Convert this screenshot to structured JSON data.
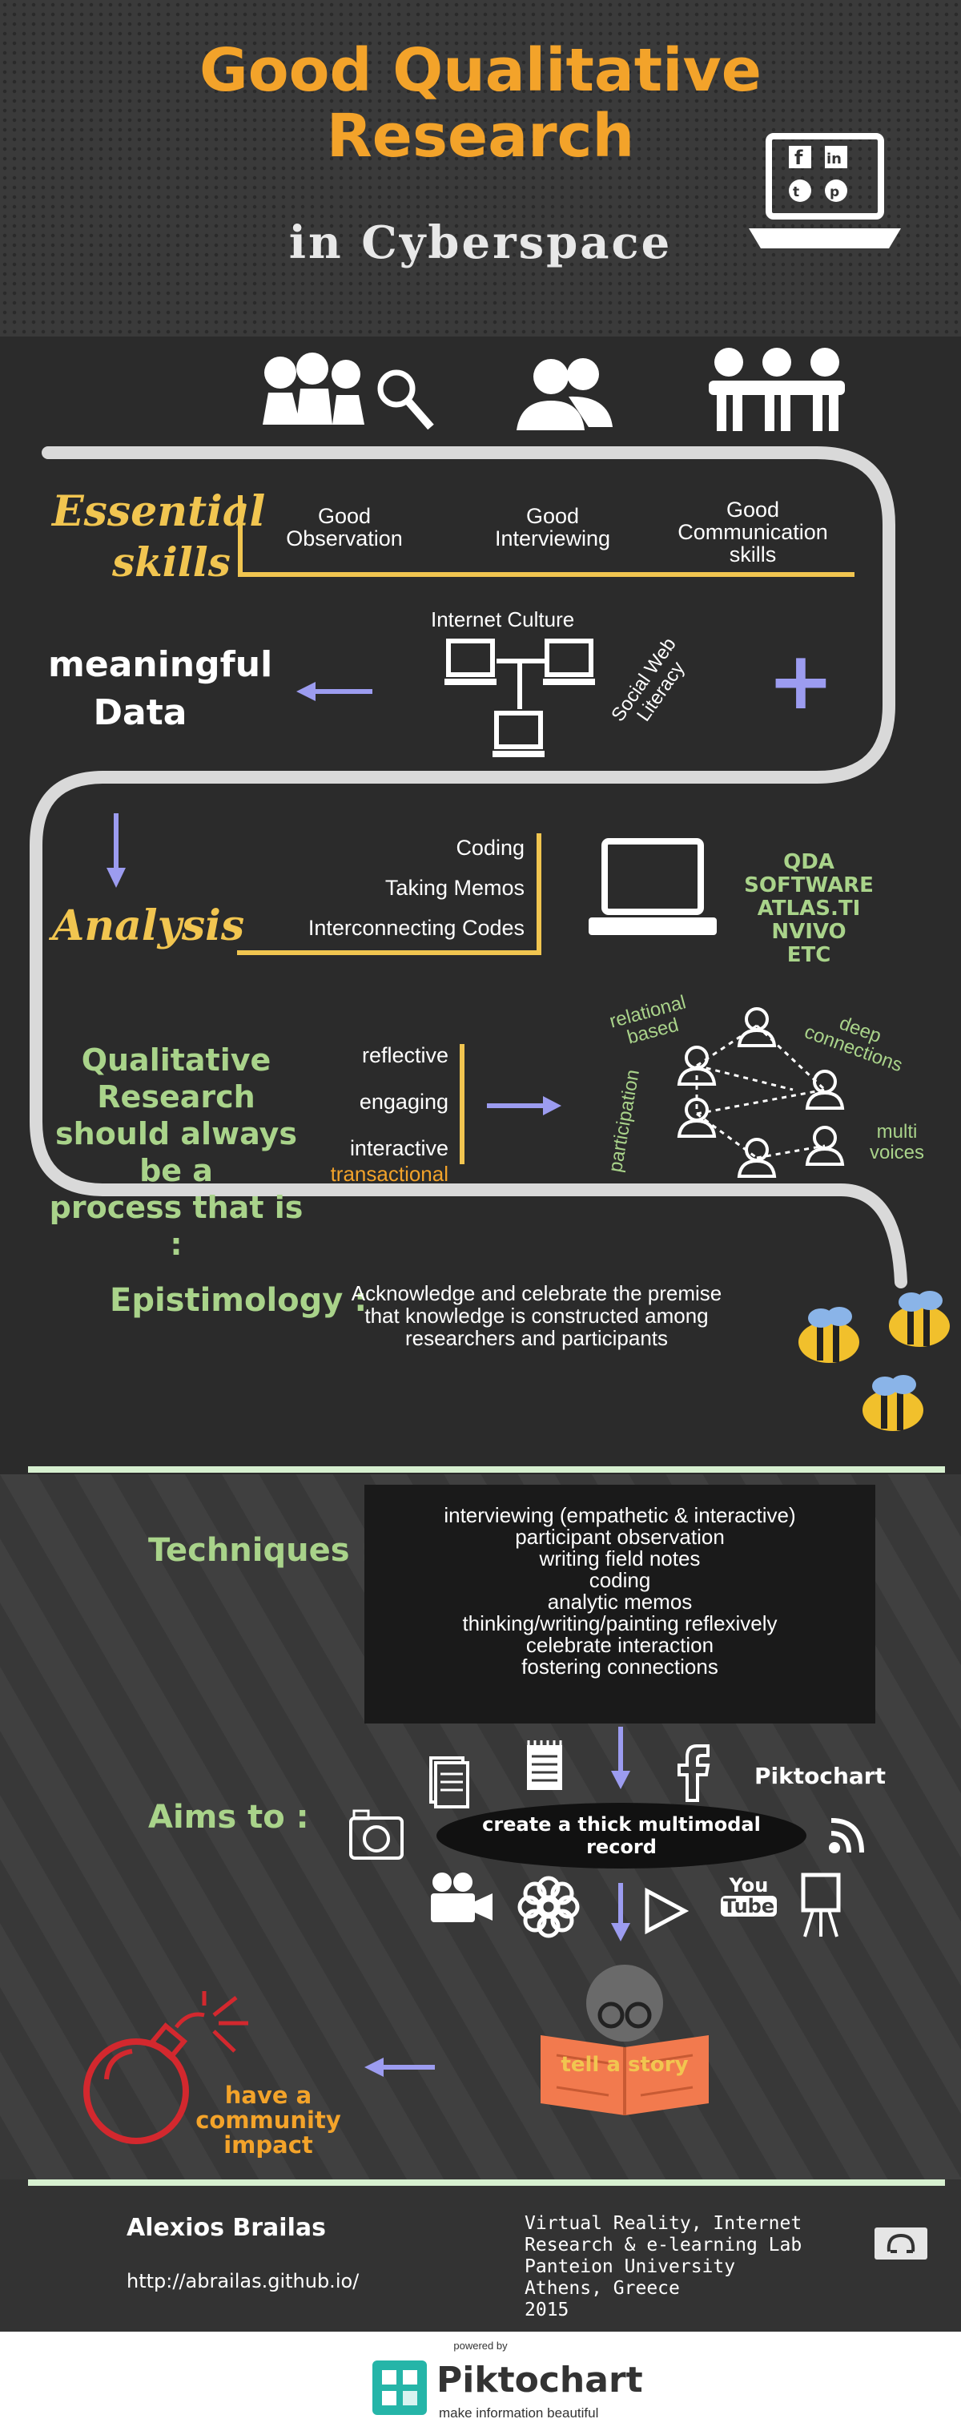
{
  "header": {
    "title_line1": "Good Qualitative",
    "title_line2": "Research",
    "subtitle": "in Cyberspace"
  },
  "skills": {
    "heading_line1": "Essential",
    "heading_line2": "skills",
    "items": [
      {
        "line1": "Good",
        "line2": "Observation",
        "line3": ""
      },
      {
        "line1": "Good",
        "line2": "Interviewing",
        "line3": ""
      },
      {
        "line1": "Good",
        "line2": "Communication",
        "line3": "skills"
      }
    ]
  },
  "network": {
    "internet_culture": "Internet Culture",
    "social_web_line1": "Social Web",
    "social_web_line2": "Literacy",
    "meaningful_line1": "meaningful",
    "meaningful_line2": "Data",
    "plus": "+"
  },
  "analysis": {
    "heading": "Analysis",
    "items": [
      "Coding",
      "Taking Memos",
      "Interconnecting Codes"
    ],
    "software": [
      "QDA SOFTWARE",
      "ATLAS.TI",
      "NVIVO",
      "ETC"
    ]
  },
  "process": {
    "heading_line1": "Qualitative Research",
    "heading_line2": "should always be a",
    "heading_line3": "process that is :",
    "items": [
      "reflective",
      "engaging",
      "interactive"
    ],
    "extra": "transactional",
    "labels": {
      "relational_line1": "relational",
      "relational_line2": "based",
      "deep_line1": "deep",
      "deep_line2": "connections",
      "participation": "participation",
      "multi_line1": "multi",
      "multi_line2": "voices"
    }
  },
  "epistemology": {
    "heading": "Epistimology :",
    "line1": "Acknowledge and celebrate the premise",
    "line2": "that knowledge is constructed among",
    "line3": "researchers and participants"
  },
  "techniques": {
    "heading": "Techniques :",
    "items": [
      "interviewing (empathetic & interactive)",
      "participant observation",
      "writing field notes",
      "coding",
      "analytic memos",
      "thinking/writing/painting reflexively",
      "celebrate interaction",
      "fostering connections"
    ]
  },
  "aims": {
    "heading": "Aims to :",
    "record_line1": "create a thick multimodal",
    "record_line2": "record",
    "story": "tell a story",
    "impact_line1": "have a",
    "impact_line2": "community",
    "impact_line3": "impact",
    "piktochart_logo": "Piktochart",
    "youtube_line1": "You",
    "youtube_line2": "Tube"
  },
  "footer": {
    "author": "Alexios Brailas",
    "url": "http://abrailas.github.io/",
    "lab_line1": "Virtual Reality, Internet",
    "lab_line2": "Research & e-learning Lab",
    "lab_line3": "Panteion University",
    "lab_line4": "Athens, Greece",
    "lab_line5": "2015"
  },
  "powered": {
    "powered_by": "powered by",
    "brand": "Piktochart",
    "tagline": "make information beautiful"
  },
  "colors": {
    "orange": "#f3a32a",
    "yellow": "#f1c550",
    "green": "#a9d38a",
    "arrow": "#9c9cf0",
    "track": "#d9d9d9"
  }
}
